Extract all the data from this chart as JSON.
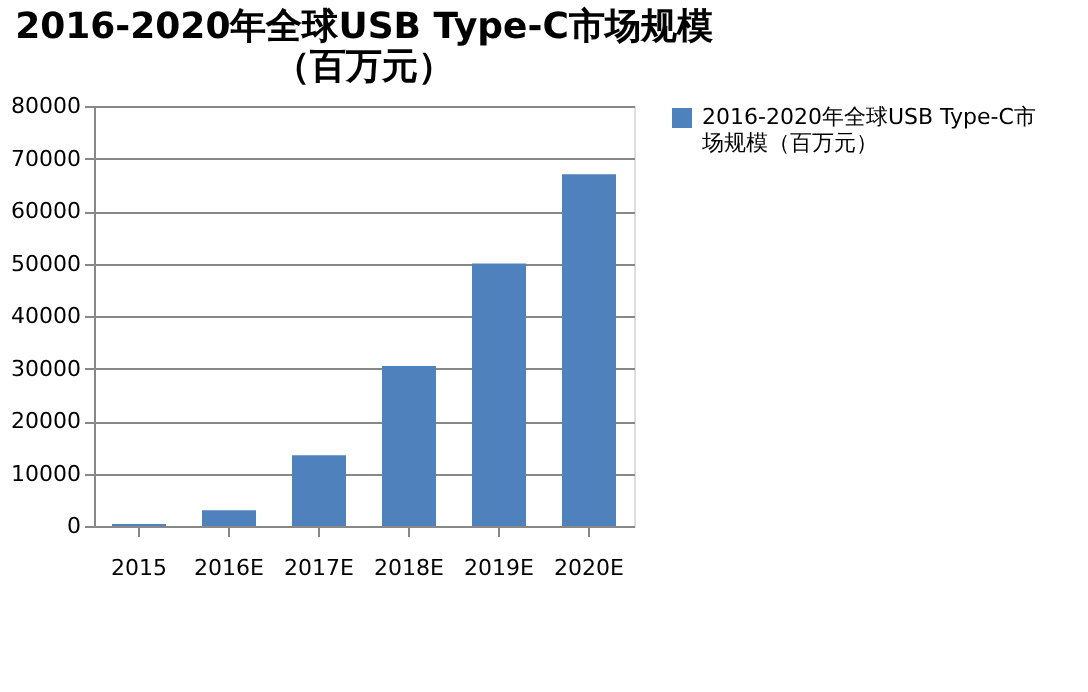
{
  "chart_data": {
    "type": "bar",
    "title": "2016-2020年全球USB Type-C市场规模（百万元）",
    "categories": [
      "2015",
      "2016E",
      "2017E",
      "2018E",
      "2019E",
      "2020E"
    ],
    "series": [
      {
        "name": "2016-2020年全球USB Type-C市场规模（百万元）",
        "color": "#4f81bd",
        "values": [
          400,
          3000,
          13500,
          30500,
          50000,
          67000
        ]
      }
    ],
    "ylim": [
      0,
      80000
    ],
    "yticks": [
      0,
      10000,
      20000,
      30000,
      40000,
      50000,
      60000,
      70000,
      80000
    ],
    "grid": "y",
    "legend": "right"
  }
}
